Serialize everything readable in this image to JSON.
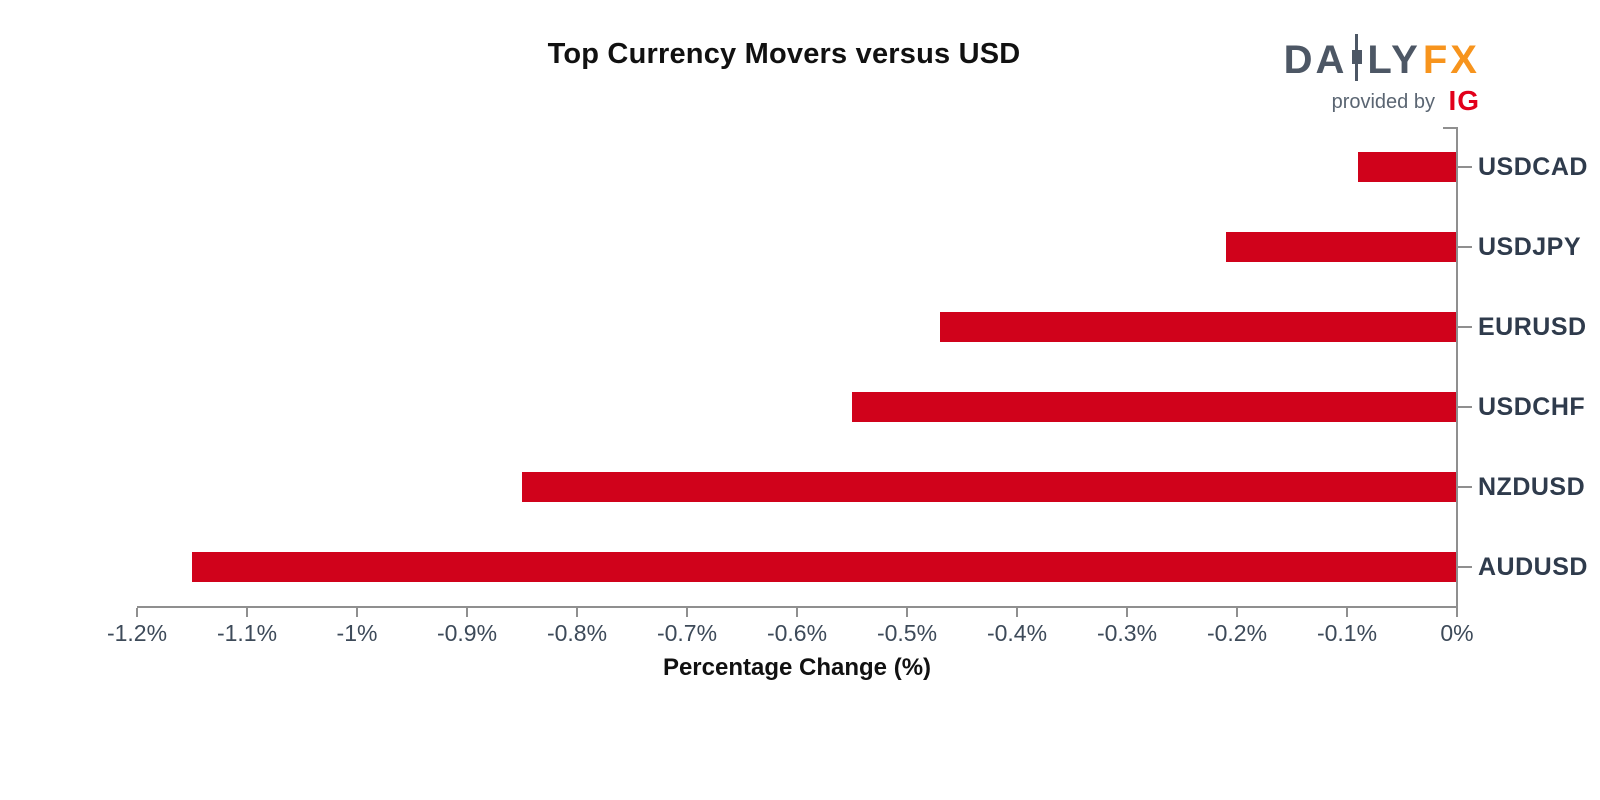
{
  "logo": {
    "part1": "DA",
    "part2": "LY",
    "fx": "FX",
    "provided_by": "provided by",
    "ig": "IG",
    "colors": {
      "text": "#4D5765",
      "fx": "#F7941D",
      "ig": "#E2001A",
      "provided_by": "#5A6572"
    }
  },
  "chart_data": {
    "type": "bar",
    "orientation": "horizontal",
    "title": "Top Currency Movers versus USD",
    "xlabel": "Percentage Change (%)",
    "ylabel": "",
    "categories": [
      "USDCAD",
      "USDJPY",
      "EURUSD",
      "USDCHF",
      "NZDUSD",
      "AUDUSD"
    ],
    "values": [
      -0.09,
      -0.21,
      -0.47,
      -0.55,
      -0.85,
      -1.15
    ],
    "value_unit": "%",
    "xlim": [
      -1.2,
      0
    ],
    "x_ticks": [
      {
        "value": -1.2,
        "label": "-1.2%"
      },
      {
        "value": -1.1,
        "label": "-1.1%"
      },
      {
        "value": -1.0,
        "label": "-1%"
      },
      {
        "value": -0.9,
        "label": "-0.9%"
      },
      {
        "value": -0.8,
        "label": "-0.8%"
      },
      {
        "value": -0.7,
        "label": "-0.7%"
      },
      {
        "value": -0.6,
        "label": "-0.6%"
      },
      {
        "value": -0.5,
        "label": "-0.5%"
      },
      {
        "value": -0.4,
        "label": "-0.4%"
      },
      {
        "value": -0.3,
        "label": "-0.3%"
      },
      {
        "value": -0.2,
        "label": "-0.2%"
      },
      {
        "value": -0.1,
        "label": "-0.1%"
      },
      {
        "value": 0,
        "label": "0%"
      }
    ],
    "grid": false,
    "legend": false,
    "axis_side": {
      "category_labels": "right",
      "value_axis": "bottom"
    },
    "colors": {
      "bar": "#D0021B",
      "axis": "#8F8F8F",
      "tick_label": "#3D4A59",
      "category_label": "#2F3B4C",
      "title": "#111111"
    }
  }
}
